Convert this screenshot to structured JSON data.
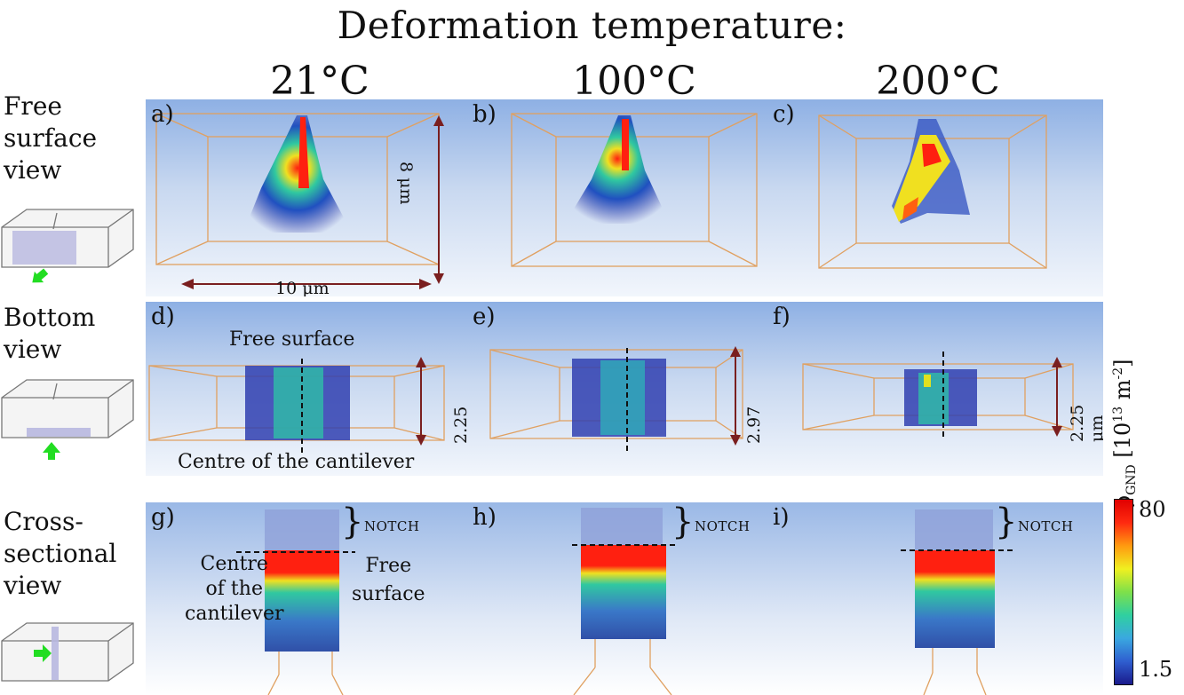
{
  "title": "Deformation temperature:",
  "temperatures": [
    "21°C",
    "100°C",
    "200°C"
  ],
  "rows": [
    {
      "label_lines": [
        "Free",
        "surface",
        "view"
      ]
    },
    {
      "label_lines": [
        "Bottom",
        "view"
      ]
    },
    {
      "label_lines": [
        "Cross-",
        "sectional",
        "view"
      ]
    }
  ],
  "panels": [
    "a)",
    "b)",
    "c)",
    "d)",
    "e)",
    "f)",
    "g)",
    "h)",
    "i)"
  ],
  "dimensions": {
    "height": "8 μm",
    "width": "10 μm",
    "thickness_d": "2.25 μm",
    "thickness_e": "2.97 μm",
    "thickness_f": "2.25 μm"
  },
  "annotations": {
    "free_surface": "Free surface",
    "centre": "Centre of the cantilever",
    "notch": "NOTCH",
    "g_centre_lines": [
      "Centre",
      "of the",
      "cantilever"
    ],
    "g_free_lines": [
      "Free",
      "surface"
    ]
  },
  "colorbar": {
    "label": "ρ",
    "label_sub": "GND",
    "unit": "[10",
    "unit_exp": "13",
    "unit_tail": " m",
    "unit_exp2": "-2",
    "unit_close": "]",
    "max": "80",
    "min": "1.5",
    "colors": [
      "#1a1a8c",
      "#2f5fd0",
      "#3aa8e0",
      "#2fd0a0",
      "#7ee04a",
      "#f0f020",
      "#ff9a10",
      "#ff2a10",
      "#e00000"
    ]
  },
  "colors": {
    "dim_arrow": "#7a1f1f",
    "frame": "#e0a060",
    "arrow_green": "#22dd22"
  }
}
